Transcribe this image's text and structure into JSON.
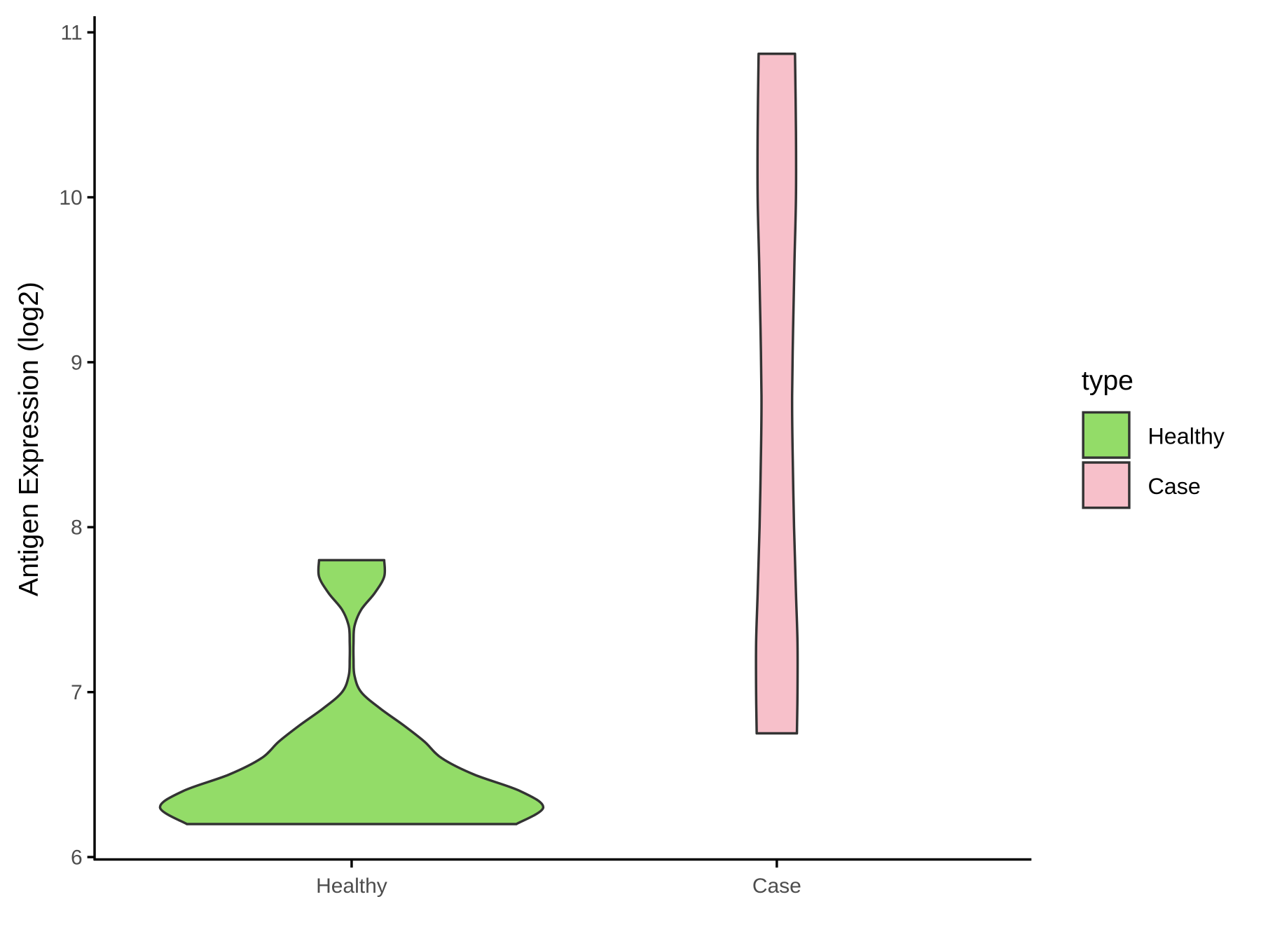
{
  "chart_data": {
    "type": "violin",
    "title": "",
    "xlabel": "",
    "ylabel": "Antigen Expression (log2)",
    "ylim": [
      6,
      11
    ],
    "yticks": [
      "6",
      "7",
      "8",
      "9",
      "10",
      "11"
    ],
    "categories": [
      "Healthy",
      "Case"
    ],
    "grid": false,
    "legend": {
      "title": "type",
      "placement": "right",
      "entries": [
        "Healthy",
        "Case"
      ]
    },
    "series": [
      {
        "name": "Healthy",
        "color": "#93DC68",
        "range": [
          6.2,
          7.8
        ],
        "density": [
          [
            6.2,
            0.86
          ],
          [
            6.3,
            1.0
          ],
          [
            6.4,
            0.88
          ],
          [
            6.5,
            0.64
          ],
          [
            6.6,
            0.47
          ],
          [
            6.7,
            0.38
          ],
          [
            6.8,
            0.27
          ],
          [
            6.9,
            0.15
          ],
          [
            7.0,
            0.05
          ],
          [
            7.1,
            0.015
          ],
          [
            7.2,
            0.01
          ],
          [
            7.3,
            0.01
          ],
          [
            7.4,
            0.015
          ],
          [
            7.5,
            0.05
          ],
          [
            7.6,
            0.12
          ],
          [
            7.7,
            0.17
          ],
          [
            7.8,
            0.17
          ]
        ]
      },
      {
        "name": "Case",
        "color": "#F7C0CA",
        "range": [
          6.75,
          10.87
        ],
        "density": [
          [
            6.75,
            0.105
          ],
          [
            7.0,
            0.108
          ],
          [
            7.3,
            0.108
          ],
          [
            7.6,
            0.1
          ],
          [
            8.0,
            0.09
          ],
          [
            8.5,
            0.082
          ],
          [
            8.8,
            0.08
          ],
          [
            9.2,
            0.085
          ],
          [
            9.6,
            0.092
          ],
          [
            10.0,
            0.1
          ],
          [
            10.4,
            0.1
          ],
          [
            10.87,
            0.095
          ]
        ]
      }
    ]
  }
}
